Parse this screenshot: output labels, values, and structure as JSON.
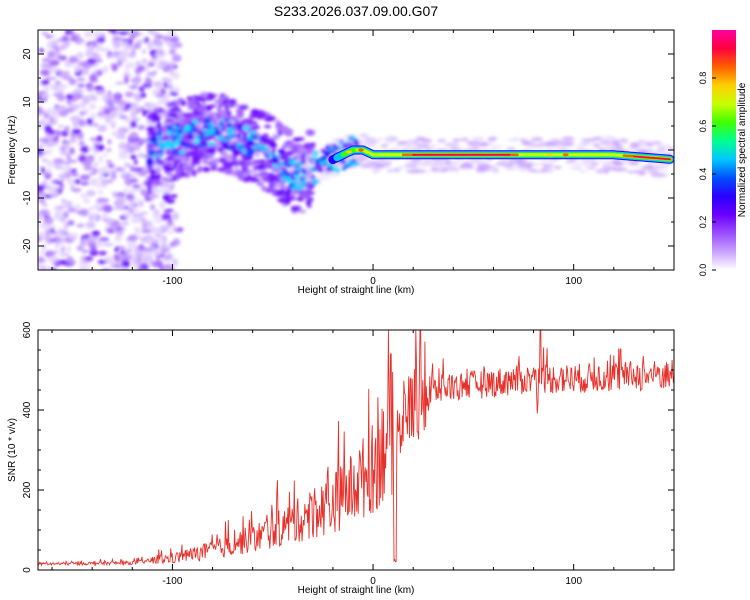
{
  "title": "S233.2026.037.09.00.G07",
  "chart_data": [
    {
      "type": "heatmap",
      "title": "S233.2026.037.09.00.G07",
      "xlabel": "Height of straight line (km)",
      "ylabel": "Frequency (Hz)",
      "xlim": [
        -167,
        150
      ],
      "ylim": [
        -25,
        25
      ],
      "xticks": [
        -100,
        0,
        100
      ],
      "yticks": [
        -20,
        -10,
        0,
        10,
        20
      ],
      "colorbar": {
        "label": "Normalized spectral amplitude",
        "range": [
          0,
          1
        ],
        "ticks": [
          "0.0",
          "0.2",
          "0.4",
          "0.6",
          "0.8"
        ],
        "colors": [
          "#ffffff",
          "#c8a2ff",
          "#9a4dff",
          "#6a00ff",
          "#2a00ff",
          "#0050ff",
          "#00c8ff",
          "#00ff90",
          "#40ff00",
          "#c8ff00",
          "#ffd000",
          "#ff6000",
          "#ff0040",
          "#ff00a0"
        ]
      },
      "ridge": {
        "x": [
          -110,
          -100,
          -90,
          -80,
          -70,
          -60,
          -50,
          -45,
          -40,
          -35,
          -30,
          -25,
          -20,
          -15,
          -10,
          -5,
          0,
          10,
          20,
          40,
          60,
          80,
          100,
          120,
          150
        ],
        "freq": [
          0,
          2,
          3,
          4,
          3,
          1,
          -1,
          -3,
          -5,
          -5,
          -4,
          -3,
          -2,
          -1,
          0,
          0,
          -1,
          -1,
          -1,
          -1,
          -1,
          -1,
          -1,
          -1,
          -2
        ]
      }
    },
    {
      "type": "line",
      "xlabel": "Height of straight line (km)",
      "ylabel": "SNR (10 * v/v)",
      "xlim": [
        -167,
        150
      ],
      "ylim": [
        0,
        600
      ],
      "xticks": [
        -100,
        0,
        100
      ],
      "yticks": [
        0,
        200,
        400,
        600
      ],
      "color": "#e8302a",
      "envelope": {
        "x": [
          -167,
          -120,
          -100,
          -80,
          -60,
          -40,
          -20,
          -10,
          0,
          5,
          10,
          11,
          12,
          15,
          20,
          30,
          40,
          60,
          80,
          100,
          120,
          150
        ],
        "y": [
          15,
          18,
          30,
          50,
          80,
          120,
          170,
          210,
          260,
          310,
          350,
          20,
          330,
          380,
          420,
          450,
          460,
          470,
          480,
          480,
          485,
          490
        ]
      }
    }
  ]
}
